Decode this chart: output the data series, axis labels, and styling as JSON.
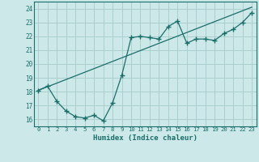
{
  "xlabel": "Humidex (Indice chaleur)",
  "bg_color": "#cce8e8",
  "grid_color": "#aacece",
  "line_color": "#1a6e6a",
  "xlim": [
    -0.5,
    23.5
  ],
  "ylim": [
    15.5,
    24.5
  ],
  "xticks": [
    0,
    1,
    2,
    3,
    4,
    5,
    6,
    7,
    8,
    9,
    10,
    11,
    12,
    13,
    14,
    15,
    16,
    17,
    18,
    19,
    20,
    21,
    22,
    23
  ],
  "yticks": [
    16,
    17,
    18,
    19,
    20,
    21,
    22,
    23,
    24
  ],
  "line1_x": [
    0,
    1,
    2,
    3,
    4,
    5,
    6,
    7,
    8,
    9,
    10,
    11,
    12,
    13,
    14,
    15,
    16,
    17,
    18,
    19,
    20,
    21,
    22,
    23
  ],
  "line1_y": [
    18.1,
    18.4,
    17.3,
    16.6,
    16.2,
    16.1,
    16.3,
    15.9,
    17.2,
    19.2,
    21.9,
    22.0,
    21.9,
    21.8,
    22.7,
    23.1,
    21.5,
    21.8,
    21.8,
    21.7,
    22.2,
    22.5,
    23.0,
    23.7
  ],
  "line2_x": [
    0,
    23
  ],
  "line2_y": [
    18.1,
    24.1
  ]
}
